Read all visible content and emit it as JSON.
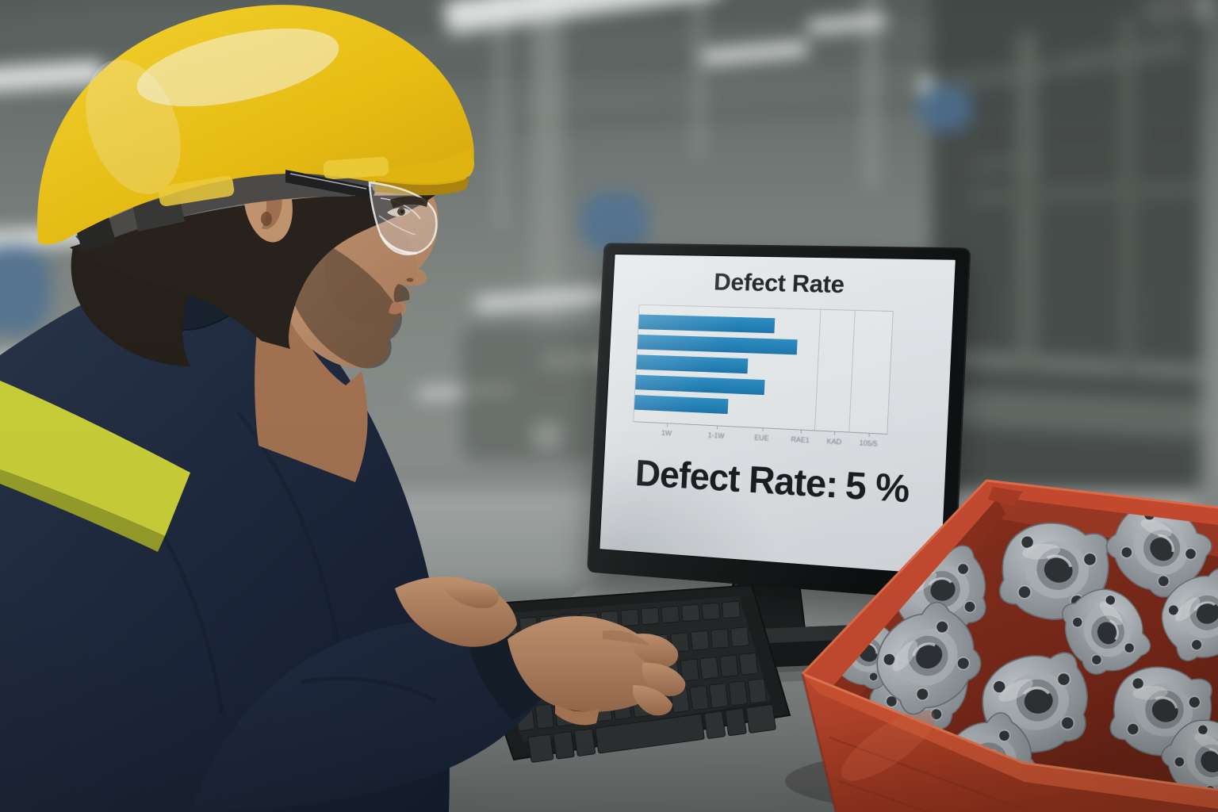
{
  "screen": {
    "title": "Defect Rate",
    "readout_label": "Defect Rate:",
    "readout_value": "5 %"
  },
  "chart_data": {
    "type": "bar",
    "orientation": "horizontal",
    "title": "Defect Rate",
    "categories": [
      "",
      "",
      "",
      "",
      ""
    ],
    "values": [
      55,
      64,
      45,
      52,
      38
    ],
    "xlim": [
      0,
      100
    ],
    "xlabel": "",
    "ylabel": "",
    "grid": "two faint vertical gridlines in right half of plot",
    "legend": "none",
    "bar_color": "#1f86c3",
    "x_tick_labels": [
      "1W",
      "1-1W",
      "EUE",
      "RAE1",
      "KAD",
      "105/5"
    ],
    "x_tick_labels_legibility": "blurred pseudo-text in photo; best-effort transcription",
    "tick_positions_pct": [
      14,
      34,
      52,
      67,
      80,
      93
    ],
    "gridline_positions_pct": [
      72.5,
      85.5
    ]
  },
  "colors": {
    "hard_hat_yellow": "#f0c20d",
    "jacket_navy": "#1c2637",
    "hi_vis_stripe": "#d3d837",
    "bin_red": "#c2432a",
    "bar_blue": "#1f86c3",
    "screen_white": "#eef0f3",
    "desk_gray": "#85898a",
    "casting_silver": "#a9aeb3",
    "background_gray_green": "#7d8480"
  }
}
